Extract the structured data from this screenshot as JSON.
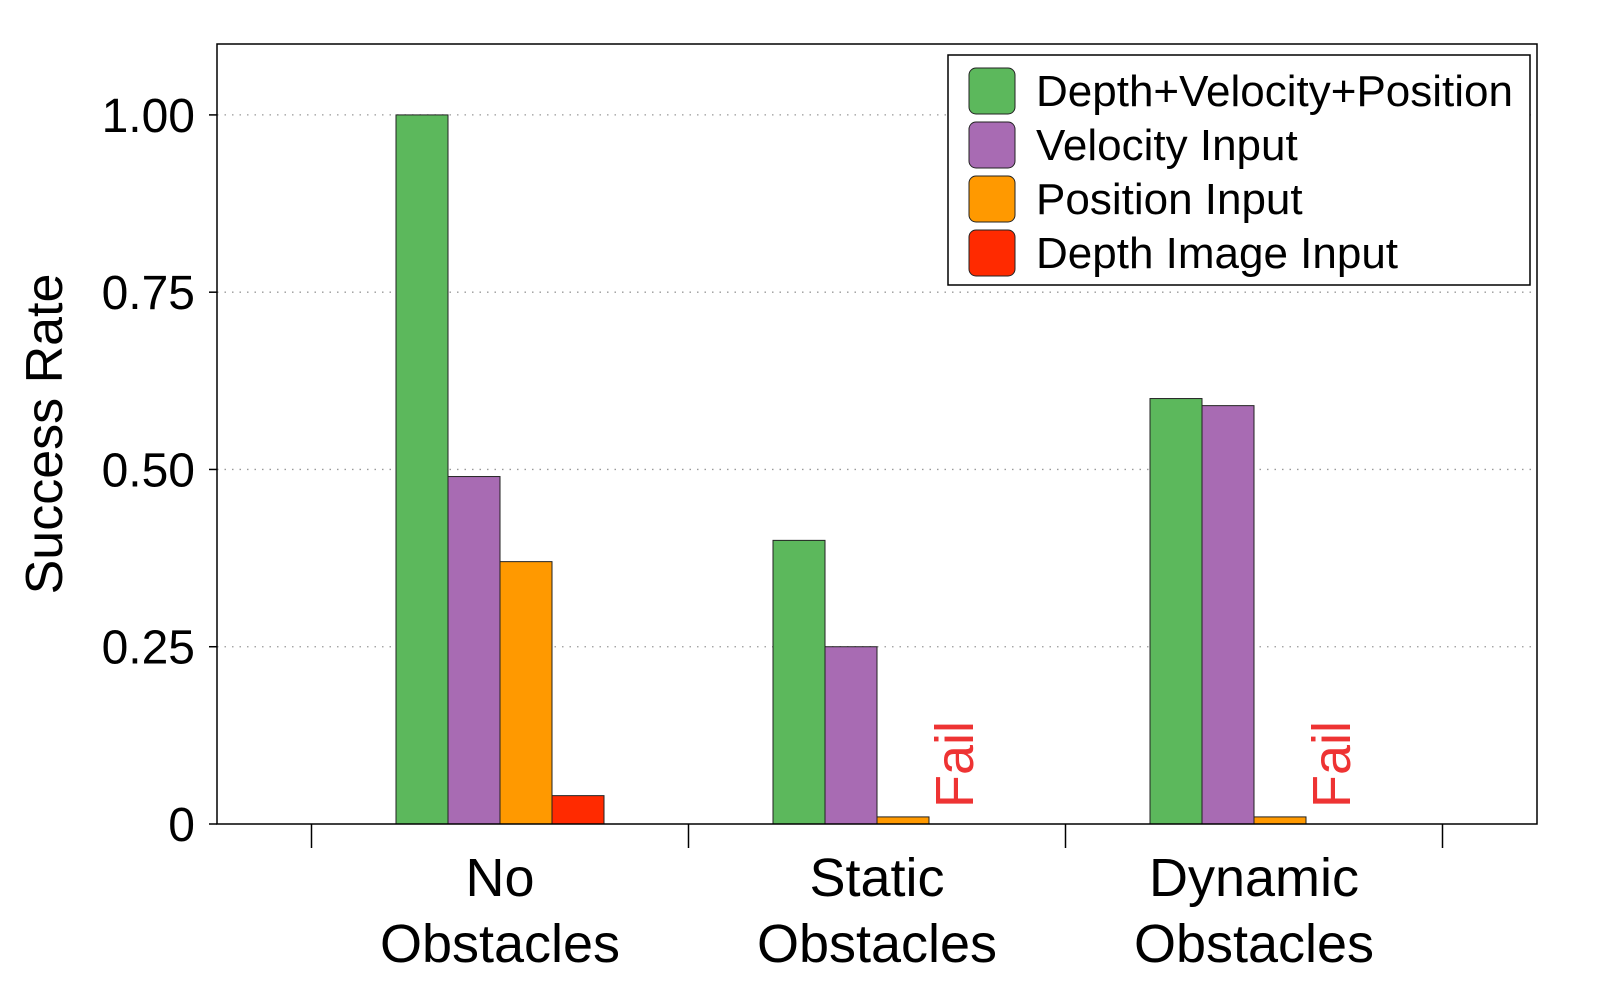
{
  "chart_data": {
    "type": "bar",
    "title": "",
    "ylabel": "Success Rate",
    "xlabel": "",
    "ylim": [
      0,
      1.1
    ],
    "yticks": [
      {
        "value": 0,
        "label": "0"
      },
      {
        "value": 0.25,
        "label": "0.25"
      },
      {
        "value": 0.5,
        "label": "0.50"
      },
      {
        "value": 0.75,
        "label": "0.75"
      },
      {
        "value": 1.0,
        "label": "1.00"
      }
    ],
    "grid": "horizontal dotted",
    "legend_position": "top-right",
    "categories": [
      {
        "line1": "No",
        "line2": "Obstacles"
      },
      {
        "line1": "Static",
        "line2": "Obstacles"
      },
      {
        "line1": "Dynamic",
        "line2": "Obstacles"
      }
    ],
    "series": [
      {
        "name": "Depth+Velocity+Position",
        "color": "#5cb85c",
        "values": [
          1.0,
          0.4,
          0.6
        ]
      },
      {
        "name": "Velocity Input",
        "color": "#a86bb3",
        "values": [
          0.49,
          0.25,
          0.59
        ]
      },
      {
        "name": "Position Input",
        "color": "#ff9900",
        "values": [
          0.37,
          0.01,
          0.01
        ]
      },
      {
        "name": "Depth Image Input",
        "color": "#ff2a00",
        "values": [
          0.04,
          null,
          null
        ]
      }
    ],
    "annotations": [
      {
        "text": "Fail",
        "category_index": 1,
        "series_index": 3,
        "color": "#ee3333"
      },
      {
        "text": "Fail",
        "category_index": 2,
        "series_index": 3,
        "color": "#ee3333"
      }
    ]
  }
}
